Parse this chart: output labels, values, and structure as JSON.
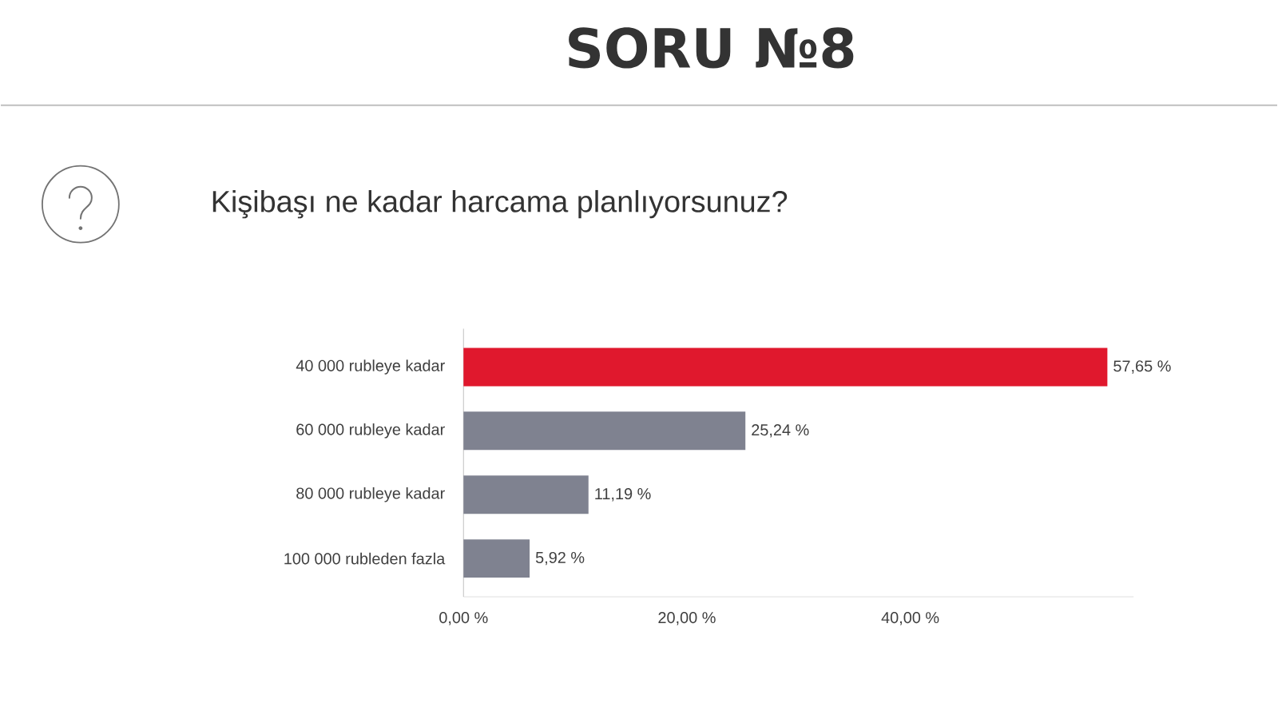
{
  "chart_data": {
    "type": "bar",
    "orientation": "horizontal",
    "title": "SORU №8",
    "subtitle": "Kişibaşı ne kadar harcama planlıyorsunuz?",
    "categories": [
      "40 000 rubleye kadar",
      "60 000 rubleye kadar",
      "80 000 rubleye kadar",
      "100 000 rubleden fazla"
    ],
    "values": [
      57.65,
      25.24,
      11.19,
      5.92
    ],
    "colors": [
      "#e0182d",
      "#7f8290",
      "#7f8290",
      "#7f8290"
    ],
    "value_labels": [
      "57,65 %",
      "25,24 %",
      "11,19 %",
      "5,92 %"
    ],
    "xlim": [
      0,
      60
    ],
    "xticks": [
      {
        "value": 0,
        "label": "0,00 %"
      },
      {
        "value": 20,
        "label": "20,00 %"
      },
      {
        "value": 40,
        "label": "40,00 %"
      }
    ]
  }
}
